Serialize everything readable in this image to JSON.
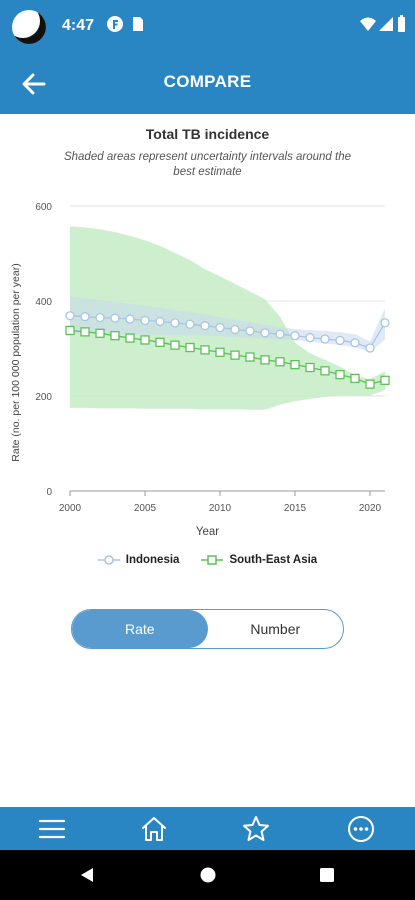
{
  "status_bar": {
    "time": "4:47"
  },
  "header": {
    "title": "COMPARE"
  },
  "chart_title": "Total TB incidence",
  "chart_subtitle": "Shaded areas represent uncertainty intervals around the best estimate",
  "toggle": {
    "rate_label": "Rate",
    "number_label": "Number",
    "selected": "Rate"
  },
  "colors": {
    "brand_blue": "#2a86c2",
    "indonesia": "#a9c4e6",
    "sea": "#5fbf5a",
    "sea_band": "#c5ecc6"
  },
  "icons": {
    "header": [
      "back-arrow-icon"
    ],
    "bottom_nav": [
      "menu-icon",
      "home-icon",
      "star-icon",
      "more-icon"
    ],
    "system_nav": [
      "back-triangle-icon",
      "home-circle-icon",
      "recents-square-icon"
    ]
  },
  "chart_data": {
    "type": "line",
    "xlabel": "Year",
    "ylabel": "Rate (no. per 100 000 population per year)",
    "xlim": [
      2000,
      2021
    ],
    "ylim": [
      0,
      600
    ],
    "xticks": [
      2000,
      2005,
      2010,
      2015,
      2020
    ],
    "yticks": [
      0,
      200,
      400,
      600
    ],
    "grid": "horizontal",
    "legend_position": "bottom",
    "x": [
      2000,
      2001,
      2002,
      2003,
      2004,
      2005,
      2006,
      2007,
      2008,
      2009,
      2010,
      2011,
      2012,
      2013,
      2014,
      2015,
      2016,
      2017,
      2018,
      2019,
      2020,
      2021
    ],
    "series": [
      {
        "name": "Indonesia",
        "marker": "circle",
        "values": [
          369,
          367,
          365,
          364,
          362,
          359,
          357,
          354,
          351,
          348,
          344,
          340,
          337,
          333,
          330,
          327,
          323,
          320,
          317,
          312,
          301,
          354
        ],
        "band_low": [
          330,
          331,
          331,
          330,
          330,
          329,
          329,
          328,
          328,
          327,
          326,
          324,
          322,
          321,
          320,
          318,
          314,
          311,
          307,
          303,
          292,
          319
        ],
        "band_high": [
          410,
          406,
          402,
          398,
          394,
          390,
          386,
          381,
          377,
          372,
          366,
          361,
          356,
          350,
          345,
          341,
          339,
          337,
          334,
          330,
          315,
          385
        ]
      },
      {
        "name": "South-East Asia",
        "marker": "square",
        "values": [
          338,
          335,
          332,
          327,
          322,
          318,
          313,
          307,
          302,
          297,
          292,
          286,
          282,
          276,
          272,
          266,
          260,
          253,
          245,
          237,
          225,
          233
        ],
        "band_low": [
          175,
          175,
          174,
          174,
          174,
          173,
          173,
          173,
          173,
          172,
          172,
          172,
          171,
          171,
          182,
          189,
          194,
          198,
          201,
          201,
          201,
          212
        ],
        "band_high": [
          557,
          555,
          551,
          545,
          537,
          528,
          516,
          501,
          486,
          467,
          452,
          436,
          420,
          404,
          367,
          312,
          290,
          276,
          262,
          244,
          235,
          252
        ]
      }
    ]
  }
}
